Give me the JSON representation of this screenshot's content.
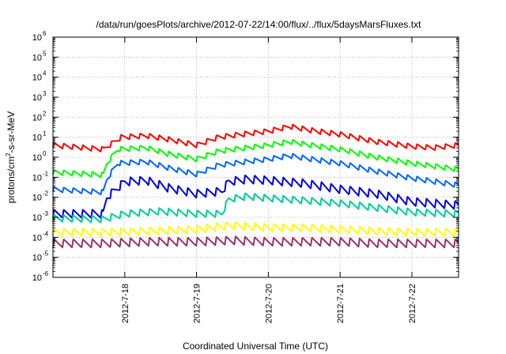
{
  "chart_data": {
    "type": "line",
    "title": "/data/run/goesPlots/archive/2012-07-22/14:00/flux/../flux/5daysMarsFluxes.txt",
    "xlabel": "Coordinated Universal Time (UTC)",
    "ylabel_prefix": "protons/cm",
    "ylabel_sup": "2",
    "ylabel_suffix": "-s-sr-MeV",
    "yscale": "log",
    "ylim": [
      1e-06,
      1000000.0
    ],
    "y_tick_exponents": [
      -6,
      -5,
      -4,
      -3,
      -2,
      -1,
      0,
      1,
      2,
      3,
      4,
      5,
      6
    ],
    "xlim": [
      17.0,
      22.65
    ],
    "x_tick_labels": [
      "2012-7-18",
      "2012-7-19",
      "2012-7-20",
      "2012-7-21",
      "2012-7-22"
    ],
    "x_tick_values": [
      18,
      19,
      20,
      21,
      22
    ],
    "grid": true,
    "sawtooth_period_days": 0.133,
    "series": [
      {
        "color": "#ff0000",
        "swing": 1.8,
        "points": [
          [
            17.0,
            4.0
          ],
          [
            17.7,
            2.5
          ],
          [
            17.95,
            10
          ],
          [
            18.3,
            12
          ],
          [
            18.6,
            8
          ],
          [
            19.0,
            4
          ],
          [
            19.3,
            10
          ],
          [
            19.7,
            15
          ],
          [
            20.0,
            20
          ],
          [
            20.3,
            35
          ],
          [
            20.6,
            22
          ],
          [
            21.0,
            14
          ],
          [
            21.5,
            6
          ],
          [
            22.0,
            3.5
          ],
          [
            22.3,
            3.0
          ],
          [
            22.65,
            4.0
          ]
        ]
      },
      {
        "color": "#00ff00",
        "swing": 1.8,
        "points": [
          [
            17.0,
            0.18
          ],
          [
            17.7,
            0.13
          ],
          [
            17.75,
            0.5
          ],
          [
            17.9,
            2.5
          ],
          [
            18.3,
            3.0
          ],
          [
            18.6,
            1.5
          ],
          [
            19.0,
            0.8
          ],
          [
            19.3,
            2.0
          ],
          [
            19.7,
            3.0
          ],
          [
            20.0,
            4.0
          ],
          [
            20.3,
            6.0
          ],
          [
            20.6,
            4.0
          ],
          [
            21.0,
            2.5
          ],
          [
            21.5,
            1.0
          ],
          [
            22.0,
            0.5
          ],
          [
            22.65,
            0.25
          ]
        ]
      },
      {
        "color": "#0066ff",
        "swing": 1.8,
        "points": [
          [
            17.0,
            0.025
          ],
          [
            17.7,
            0.018
          ],
          [
            17.75,
            0.08
          ],
          [
            17.9,
            0.5
          ],
          [
            18.3,
            0.6
          ],
          [
            18.6,
            0.3
          ],
          [
            19.0,
            0.14
          ],
          [
            19.3,
            0.4
          ],
          [
            19.7,
            0.6
          ],
          [
            20.0,
            0.8
          ],
          [
            20.3,
            1.2
          ],
          [
            20.6,
            0.8
          ],
          [
            21.0,
            0.5
          ],
          [
            21.5,
            0.2
          ],
          [
            22.0,
            0.09
          ],
          [
            22.65,
            0.04
          ]
        ]
      },
      {
        "color": "#0000dd",
        "swing": 2.6,
        "points": [
          [
            17.0,
            0.0015
          ],
          [
            17.7,
            0.0015
          ],
          [
            17.75,
            0.01
          ],
          [
            18.0,
            0.06
          ],
          [
            18.3,
            0.07
          ],
          [
            18.6,
            0.03
          ],
          [
            19.0,
            0.015
          ],
          [
            19.35,
            0.02
          ],
          [
            19.45,
            0.06
          ],
          [
            19.7,
            0.08
          ],
          [
            20.0,
            0.07
          ],
          [
            20.5,
            0.05
          ],
          [
            21.0,
            0.025
          ],
          [
            21.5,
            0.015
          ],
          [
            22.0,
            0.006
          ],
          [
            22.65,
            0.004
          ]
        ]
      },
      {
        "color": "#00cc99",
        "swing": 2.2,
        "points": [
          [
            17.0,
            0.0009
          ],
          [
            17.7,
            0.0008
          ],
          [
            18.0,
            0.0015
          ],
          [
            18.5,
            0.002
          ],
          [
            19.0,
            0.0015
          ],
          [
            19.35,
            0.0015
          ],
          [
            19.45,
            0.008
          ],
          [
            19.7,
            0.011
          ],
          [
            20.0,
            0.009
          ],
          [
            20.5,
            0.007
          ],
          [
            21.0,
            0.005
          ],
          [
            21.5,
            0.003
          ],
          [
            22.0,
            0.0018
          ],
          [
            22.65,
            0.0015
          ]
        ]
      },
      {
        "color": "#ffff00",
        "swing": 2.4,
        "points": [
          [
            17.0,
            0.00018
          ],
          [
            17.7,
            0.00018
          ],
          [
            18.3,
            0.0002
          ],
          [
            19.0,
            0.00025
          ],
          [
            19.5,
            0.0004
          ],
          [
            20.0,
            0.0003
          ],
          [
            20.5,
            0.0003
          ],
          [
            21.0,
            0.00025
          ],
          [
            21.5,
            0.0002
          ],
          [
            22.0,
            0.00018
          ],
          [
            22.65,
            0.00018
          ]
        ]
      },
      {
        "color": "#993366",
        "swing": 2.6,
        "points": [
          [
            17.0,
            5e-05
          ],
          [
            17.7,
            5e-05
          ],
          [
            18.3,
            6e-05
          ],
          [
            19.0,
            6e-05
          ],
          [
            19.5,
            7e-05
          ],
          [
            20.0,
            6e-05
          ],
          [
            20.5,
            6e-05
          ],
          [
            21.0,
            6e-05
          ],
          [
            21.5,
            5e-05
          ],
          [
            22.0,
            5e-05
          ],
          [
            22.65,
            5e-05
          ]
        ]
      }
    ]
  }
}
